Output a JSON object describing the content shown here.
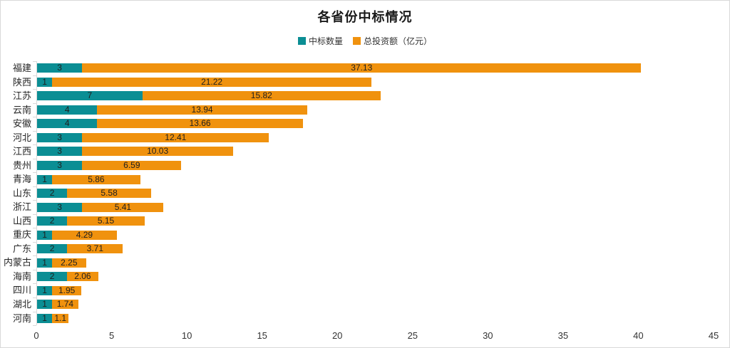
{
  "chart_data": {
    "type": "bar",
    "orientation": "horizontal",
    "stacked": true,
    "title": "各省份中标情况",
    "categories": [
      "福建",
      "陕西",
      "江苏",
      "云南",
      "安徽",
      "河北",
      "江西",
      "贵州",
      "青海",
      "山东",
      "浙江",
      "山西",
      "重庆",
      "广东",
      "内蒙古",
      "海南",
      "四川",
      "湖北",
      "河南"
    ],
    "series": [
      {
        "name": "中标数量",
        "color": "#0b8e94",
        "values": [
          3,
          1,
          7,
          4,
          4,
          3,
          3,
          3,
          1,
          2,
          3,
          2,
          1,
          2,
          1,
          2,
          1,
          1,
          1
        ]
      },
      {
        "name": "总投资额（亿元）",
        "color": "#f0920e",
        "values": [
          37.13,
          21.22,
          15.82,
          13.94,
          13.66,
          12.41,
          10.03,
          6.59,
          5.86,
          5.58,
          5.41,
          5.15,
          4.29,
          3.71,
          2.25,
          2.06,
          1.95,
          1.74,
          1.1
        ]
      }
    ],
    "xlim": [
      0,
      45
    ],
    "xticks": [
      0,
      5,
      10,
      15,
      20,
      25,
      30,
      35,
      40,
      45
    ],
    "grid": false,
    "legend_position": "top-center",
    "axis_color": "#d9d9d9",
    "label_color": "#1f1f1f"
  }
}
